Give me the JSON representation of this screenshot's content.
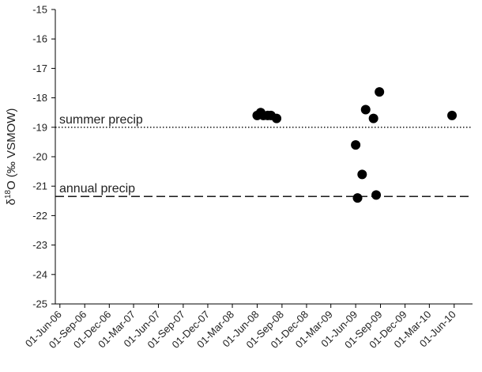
{
  "chart_data": {
    "type": "scatter",
    "title": "",
    "xlabel": "",
    "ylabel": "δ18O (‰ VSMOW)",
    "ylabel_parts": {
      "delta": "δ",
      "superscript": "18",
      "rest": "O (‰ VSMOW)"
    },
    "ylim": [
      -25,
      -15
    ],
    "y_ticks": [
      -15,
      -16,
      -17,
      -18,
      -19,
      -20,
      -21,
      -22,
      -23,
      -24,
      -25
    ],
    "xlim": [
      "2006-05-15",
      "2010-08-08"
    ],
    "x_ticks": [
      {
        "date": "2006-06-01",
        "label": "01-Jun-06"
      },
      {
        "date": "2006-09-01",
        "label": "01-Sep-06"
      },
      {
        "date": "2006-12-01",
        "label": "01-Dec-06"
      },
      {
        "date": "2007-03-01",
        "label": "01-Mar-07"
      },
      {
        "date": "2007-06-01",
        "label": "01-Jun-07"
      },
      {
        "date": "2007-09-01",
        "label": "01-Sep-07"
      },
      {
        "date": "2007-12-01",
        "label": "01-Dec-07"
      },
      {
        "date": "2008-03-01",
        "label": "01-Mar-08"
      },
      {
        "date": "2008-06-01",
        "label": "01-Jun-08"
      },
      {
        "date": "2008-09-01",
        "label": "01-Sep-08"
      },
      {
        "date": "2008-12-01",
        "label": "01-Dec-08"
      },
      {
        "date": "2009-03-01",
        "label": "01-Mar-09"
      },
      {
        "date": "2009-06-01",
        "label": "01-Jun-09"
      },
      {
        "date": "2009-09-01",
        "label": "01-Sep-09"
      },
      {
        "date": "2009-12-01",
        "label": "01-Dec-09"
      },
      {
        "date": "2010-03-01",
        "label": "01-Mar-10"
      },
      {
        "date": "2010-06-01",
        "label": "01-Jun-10"
      }
    ],
    "grid": false,
    "legend": "none",
    "points": [
      {
        "date": "2008-06-01",
        "value": -18.6
      },
      {
        "date": "2008-06-14",
        "value": -18.5
      },
      {
        "date": "2008-06-24",
        "value": -18.6
      },
      {
        "date": "2008-07-10",
        "value": -18.6
      },
      {
        "date": "2008-07-22",
        "value": -18.6
      },
      {
        "date": "2008-08-12",
        "value": -18.7
      },
      {
        "date": "2009-06-01",
        "value": -19.6
      },
      {
        "date": "2009-06-08",
        "value": -21.4
      },
      {
        "date": "2009-06-25",
        "value": -20.6
      },
      {
        "date": "2009-07-08",
        "value": -18.4
      },
      {
        "date": "2009-08-06",
        "value": -18.7
      },
      {
        "date": "2009-08-16",
        "value": -21.3
      },
      {
        "date": "2009-08-28",
        "value": -17.8
      },
      {
        "date": "2010-05-24",
        "value": -18.6
      }
    ],
    "reference_lines": [
      {
        "label": "summer precip",
        "value": -19.0,
        "style": "dotted"
      },
      {
        "label": "annual precip",
        "value": -21.35,
        "style": "dashed"
      }
    ],
    "marker_color": "#000000",
    "line_color": "#000000"
  }
}
